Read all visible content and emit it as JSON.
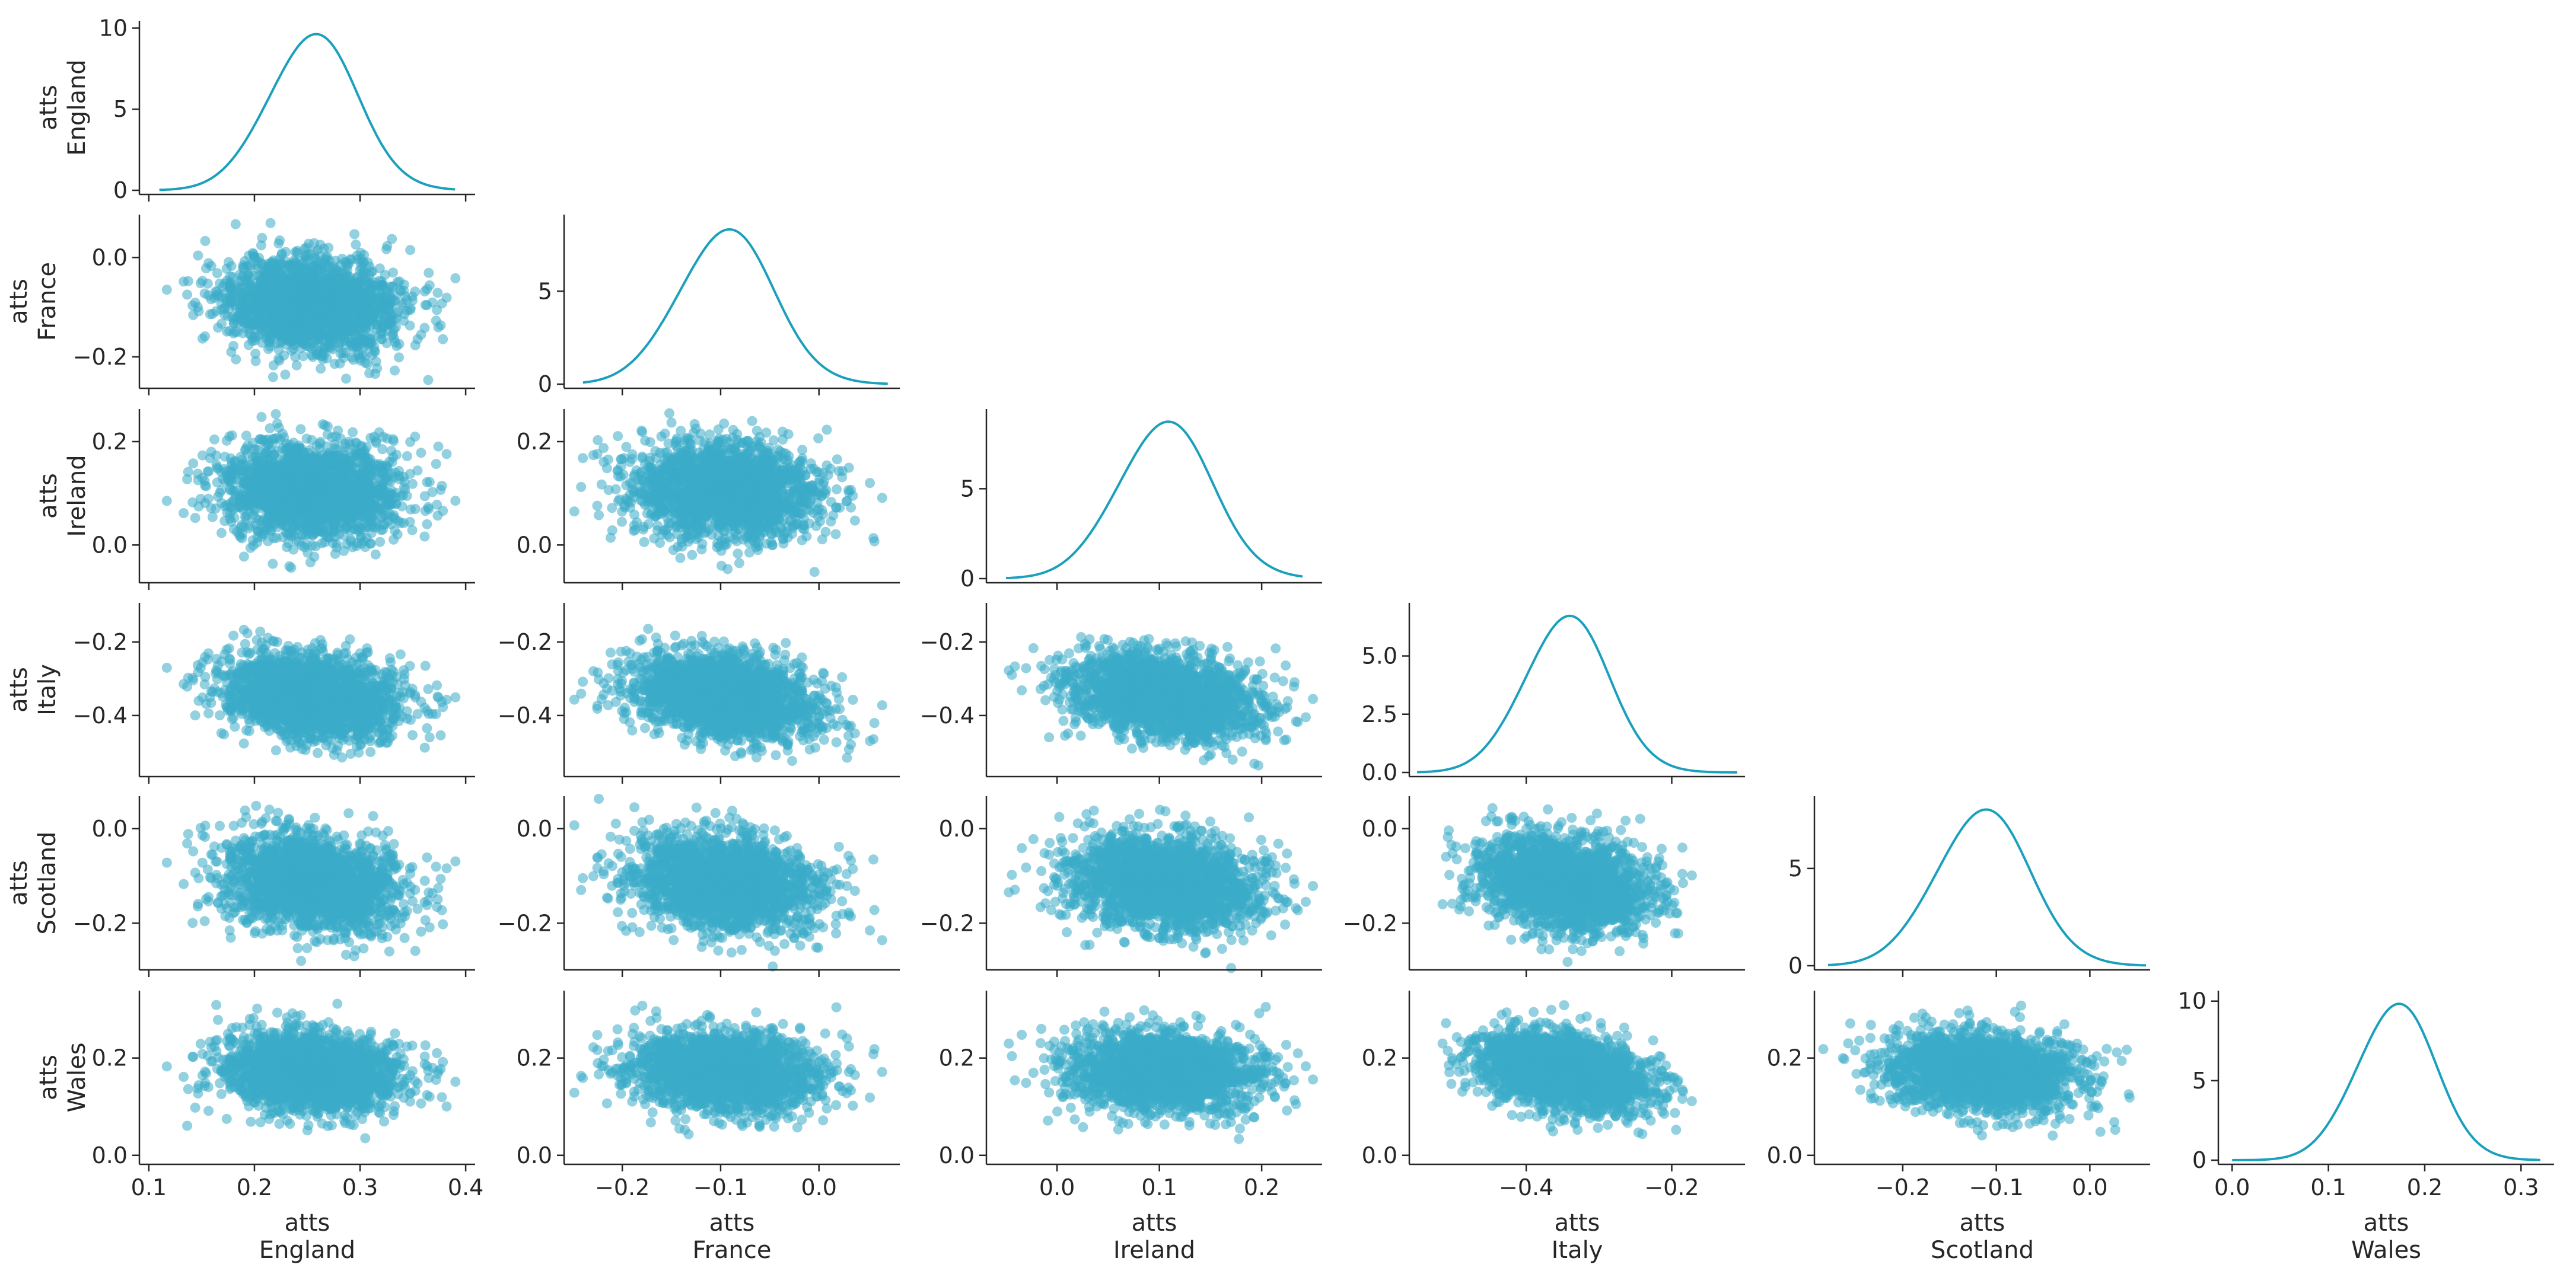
{
  "chart_data": {
    "type": "pair-plot",
    "variables": [
      {
        "name": "England",
        "label": [
          "atts",
          "England"
        ]
      },
      {
        "name": "France",
        "label": [
          "atts",
          "France"
        ]
      },
      {
        "name": "Ireland",
        "label": [
          "atts",
          "Ireland"
        ]
      },
      {
        "name": "Italy",
        "label": [
          "atts",
          "Italy"
        ]
      },
      {
        "name": "Scotland",
        "label": [
          "atts",
          "Scotland"
        ]
      },
      {
        "name": "Wales",
        "label": [
          "atts",
          "Wales"
        ]
      }
    ],
    "diagonal": "kde",
    "off_diagonal": "scatter",
    "color": "#3AABC8",
    "kde_color": "#1AA0BC",
    "marginals": [
      {
        "variable": "England",
        "mean": 0.255,
        "sd": 0.042,
        "range": [
          0.11,
          0.39
        ],
        "density_peak": 9.6
      },
      {
        "variable": "France",
        "mean": -0.095,
        "sd": 0.048,
        "range": [
          -0.24,
          0.07
        ],
        "density_peak": 8.3
      },
      {
        "variable": "Ireland",
        "mean": 0.105,
        "sd": 0.046,
        "range": [
          -0.05,
          0.24
        ],
        "density_peak": 8.7
      },
      {
        "variable": "Italy",
        "mean": -0.345,
        "sd": 0.058,
        "range": [
          -0.55,
          -0.11
        ],
        "density_peak": 6.7
      },
      {
        "variable": "Scotland",
        "mean": -0.115,
        "sd": 0.05,
        "range": [
          -0.28,
          0.06
        ],
        "density_peak": 8.0
      },
      {
        "variable": "Wales",
        "mean": 0.17,
        "sd": 0.041,
        "range": [
          0.0,
          0.32
        ],
        "density_peak": 9.8
      }
    ],
    "axes": {
      "England": {
        "lim": [
          0.095,
          0.405
        ],
        "ticks": [
          0.1,
          0.2,
          0.3,
          0.4
        ],
        "tick_labels": [
          "0.1",
          "0.2",
          "0.3",
          "0.4"
        ]
      },
      "France": {
        "lim": [
          -0.255,
          0.078
        ],
        "ticks": [
          -0.2,
          0.0
        ],
        "tick_labels": [
          "−0.2",
          "0.0"
        ],
        "x_ticks": [
          -0.2,
          -0.1,
          0.0
        ],
        "x_tick_labels": [
          "−0.2",
          "−0.1",
          "0.0"
        ]
      },
      "Ireland": {
        "lim": [
          -0.065,
          0.255
        ],
        "ticks": [
          0.0,
          0.2
        ],
        "tick_labels": [
          "0.0",
          "0.2"
        ],
        "x_ticks": [
          0.0,
          0.1,
          0.2
        ],
        "x_tick_labels": [
          "0.0",
          "0.1",
          "0.2"
        ]
      },
      "Italy": {
        "lim": [
          -0.555,
          -0.105
        ],
        "ticks": [
          -0.4,
          -0.2
        ],
        "tick_labels": [
          "−0.4",
          "−0.2"
        ]
      },
      "Scotland": {
        "lim": [
          -0.29,
          0.06
        ],
        "ticks": [
          -0.2,
          0.0
        ],
        "tick_labels": [
          "−0.2",
          "0.0"
        ],
        "x_ticks": [
          -0.2,
          -0.1,
          0.0
        ],
        "x_tick_labels": [
          "−0.2",
          "−0.1",
          "0.0"
        ]
      },
      "Wales": {
        "lim": [
          -0.01,
          0.33
        ],
        "ticks": [
          0.0,
          0.2
        ],
        "tick_labels": [
          "0.0",
          "0.2"
        ],
        "x_ticks": [
          0.0,
          0.1,
          0.2,
          0.3
        ],
        "x_tick_labels": [
          "0.0",
          "0.1",
          "0.2",
          "0.3"
        ]
      }
    },
    "density_axes": [
      {
        "variable": "England",
        "ylim": [
          0,
          10.2
        ],
        "ticks": [
          0,
          5,
          10
        ],
        "tick_labels": [
          "0",
          "5",
          "10"
        ]
      },
      {
        "variable": "France",
        "ylim": [
          0,
          8.9
        ],
        "ticks": [
          0,
          5
        ],
        "tick_labels": [
          "0",
          "5"
        ]
      },
      {
        "variable": "Ireland",
        "ylim": [
          0,
          9.2
        ],
        "ticks": [
          0,
          5
        ],
        "tick_labels": [
          "0",
          "5"
        ]
      },
      {
        "variable": "Italy",
        "ylim": [
          0,
          7.1
        ],
        "ticks": [
          0,
          2.5,
          5
        ],
        "tick_labels": [
          "0.0",
          "2.5",
          "5.0"
        ]
      },
      {
        "variable": "Scotland",
        "ylim": [
          0,
          8.5
        ],
        "ticks": [
          0,
          5
        ],
        "tick_labels": [
          "0",
          "5"
        ]
      },
      {
        "variable": "Wales",
        "ylim": [
          0,
          10.4
        ],
        "ticks": [
          0,
          5,
          10
        ],
        "tick_labels": [
          "0",
          "5",
          "10"
        ]
      }
    ],
    "correlations": {
      "France|England": -0.15,
      "Ireland|England": -0.1,
      "Ireland|France": -0.1,
      "Italy|England": -0.28,
      "Italy|France": -0.3,
      "Italy|Ireland": -0.28,
      "Scotland|England": -0.18,
      "Scotland|France": -0.2,
      "Scotland|Ireland": -0.18,
      "Scotland|Italy": -0.2,
      "Wales|England": -0.1,
      "Wales|France": -0.1,
      "Wales|Ireland": -0.1,
      "Wales|Italy": -0.3,
      "Wales|Scotland": -0.15
    },
    "n_draws": 2000,
    "grid": false
  }
}
